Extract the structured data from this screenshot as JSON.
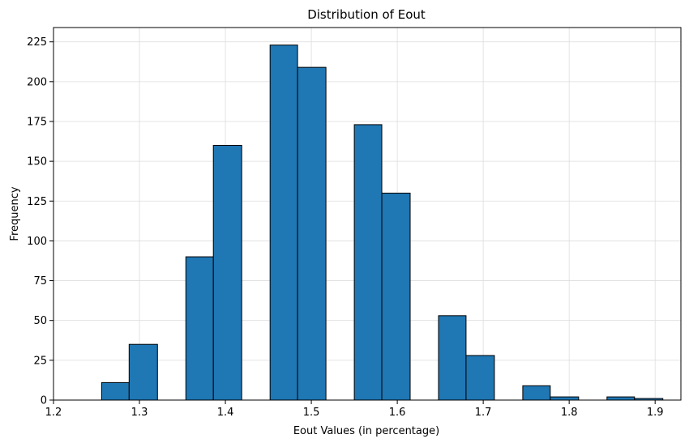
{
  "chart_data": {
    "type": "bar",
    "title": "Distribution of Eout",
    "xlabel": "Eout Values (in percentage)",
    "ylabel": "Frequency",
    "xlim": [
      1.2,
      1.93
    ],
    "ylim": [
      0,
      234
    ],
    "xticks": [
      "1.2",
      "1.3",
      "1.4",
      "1.5",
      "1.6",
      "1.7",
      "1.8",
      "1.9"
    ],
    "yticks": [
      "0",
      "25",
      "50",
      "75",
      "100",
      "125",
      "150",
      "175",
      "200",
      "225"
    ],
    "grid": true,
    "bar_color": "#1f77b4",
    "edge_color": "#000000",
    "bins": [
      {
        "x0": 1.256,
        "x1": 1.288,
        "count": 11
      },
      {
        "x0": 1.288,
        "x1": 1.321,
        "count": 35
      },
      {
        "x0": 1.321,
        "x1": 1.354,
        "count": 0
      },
      {
        "x0": 1.354,
        "x1": 1.386,
        "count": 90
      },
      {
        "x0": 1.386,
        "x1": 1.419,
        "count": 160
      },
      {
        "x0": 1.419,
        "x1": 1.452,
        "count": 0
      },
      {
        "x0": 1.452,
        "x1": 1.484,
        "count": 223
      },
      {
        "x0": 1.484,
        "x1": 1.517,
        "count": 209
      },
      {
        "x0": 1.517,
        "x1": 1.55,
        "count": 0
      },
      {
        "x0": 1.55,
        "x1": 1.582,
        "count": 173
      },
      {
        "x0": 1.582,
        "x1": 1.615,
        "count": 130
      },
      {
        "x0": 1.615,
        "x1": 1.648,
        "count": 0
      },
      {
        "x0": 1.648,
        "x1": 1.68,
        "count": 53
      },
      {
        "x0": 1.68,
        "x1": 1.713,
        "count": 28
      },
      {
        "x0": 1.713,
        "x1": 1.746,
        "count": 0
      },
      {
        "x0": 1.746,
        "x1": 1.778,
        "count": 9
      },
      {
        "x0": 1.778,
        "x1": 1.811,
        "count": 2
      },
      {
        "x0": 1.811,
        "x1": 1.844,
        "count": 0
      },
      {
        "x0": 1.844,
        "x1": 1.876,
        "count": 2
      },
      {
        "x0": 1.876,
        "x1": 1.909,
        "count": 1
      }
    ]
  }
}
